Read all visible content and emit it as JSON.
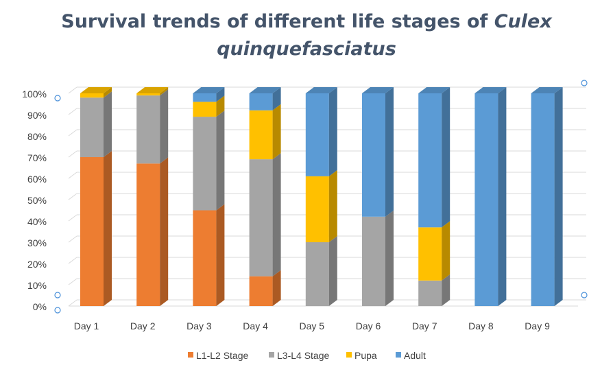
{
  "chart_data": {
    "type": "bar",
    "stacked": true,
    "percent_stacked": true,
    "three_d": true,
    "title_parts": [
      "Survival trends of different life stages of ",
      "Culex",
      "quinquefasciatus"
    ],
    "categories": [
      "Day 1",
      "Day 2",
      "Day 3",
      "Day 4",
      "Day 5",
      "Day 6",
      "Day 7",
      "Day 8",
      "Day 9"
    ],
    "series": [
      {
        "name": "L1-L2 Stage",
        "color": "#ed7d31",
        "values": [
          70,
          67,
          45,
          14,
          0,
          0,
          0,
          0,
          0
        ]
      },
      {
        "name": "L3-L4 Stage",
        "color": "#a5a5a5",
        "values": [
          28,
          32,
          44,
          55,
          30,
          42,
          12,
          0,
          0
        ]
      },
      {
        "name": "Pupa",
        "color": "#ffc000",
        "values": [
          2,
          1,
          7,
          23,
          31,
          0,
          25,
          0,
          0
        ]
      },
      {
        "name": "Adult",
        "color": "#5b9bd5",
        "values": [
          0,
          0,
          4,
          8,
          39,
          58,
          63,
          100,
          100
        ]
      }
    ],
    "y_ticks": [
      "0%",
      "10%",
      "20%",
      "30%",
      "40%",
      "50%",
      "60%",
      "70%",
      "80%",
      "90%",
      "100%"
    ],
    "ylim": [
      0,
      100
    ],
    "grid": true,
    "legend_position": "bottom"
  }
}
